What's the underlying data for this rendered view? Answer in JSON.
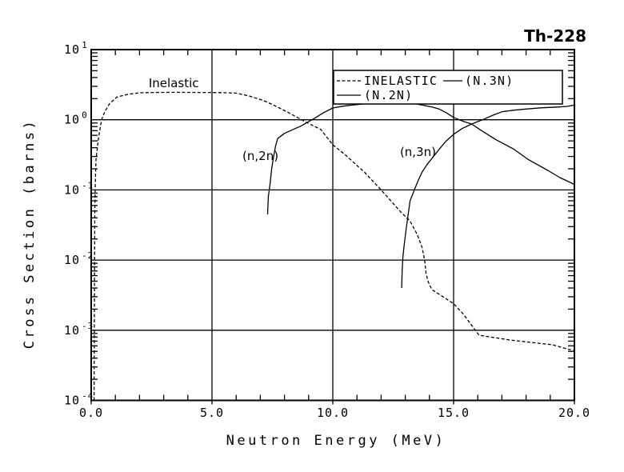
{
  "page": {
    "background": "#ffffff",
    "ink": "#000000"
  },
  "header": {
    "title": "Th-228"
  },
  "chart_data": {
    "type": "line",
    "title": "Th-228",
    "xlabel": "Neutron Energy (MeV)",
    "ylabel": "Cross Section (barns)",
    "xscale": "linear",
    "yscale": "log",
    "xlim": [
      0,
      20
    ],
    "ylim": [
      0.0001,
      10
    ],
    "x_major_ticks": [
      0,
      5,
      10,
      15,
      20
    ],
    "x_tick_labels": [
      "0.0",
      "5.0",
      "10.0",
      "15.0",
      "20.0"
    ],
    "x_minor_tick_step": 1,
    "y_tick_exponents": [
      1,
      0,
      -1,
      -2,
      -3,
      -4
    ],
    "grid": {
      "vertical_at_x": [
        5,
        10,
        15
      ],
      "horizontal_at_exponents": [
        0,
        -1,
        -2,
        -3
      ]
    },
    "legend": {
      "position": "top-right-inside",
      "entries": [
        {
          "label": "INELASTIC",
          "line": "dashed"
        },
        {
          "label": "(N.3N)",
          "line": "solid"
        },
        {
          "label": "(N.2N)",
          "line": "solid"
        }
      ]
    },
    "annotations": [
      {
        "text": "Inelastic",
        "x": 2.38,
        "y": 2.9
      },
      {
        "text": "(n,2n)",
        "x": 6.26,
        "y": 0.267
      },
      {
        "text": "(n,3n)",
        "x": 12.78,
        "y": 0.305
      }
    ],
    "series": [
      {
        "name": "INELASTIC",
        "style": "dashed",
        "points": [
          [
            0.12,
            0.0001
          ],
          [
            0.13,
            0.001
          ],
          [
            0.14,
            0.01
          ],
          [
            0.15,
            0.05
          ],
          [
            0.17,
            0.12
          ],
          [
            0.2,
            0.27
          ],
          [
            0.3,
            0.55
          ],
          [
            0.43,
            1.0
          ],
          [
            0.56,
            1.3
          ],
          [
            0.76,
            1.7
          ],
          [
            1.06,
            2.1
          ],
          [
            1.5,
            2.3
          ],
          [
            2.0,
            2.42
          ],
          [
            2.6,
            2.45
          ],
          [
            3.5,
            2.46
          ],
          [
            4.5,
            2.45
          ],
          [
            5.3,
            2.44
          ],
          [
            6.0,
            2.4
          ],
          [
            6.5,
            2.2
          ],
          [
            7.1,
            1.9
          ],
          [
            7.5,
            1.65
          ],
          [
            8.1,
            1.3
          ],
          [
            8.6,
            1.05
          ],
          [
            8.9,
            0.92
          ],
          [
            9.5,
            0.73
          ],
          [
            10.0,
            0.44
          ],
          [
            10.5,
            0.32
          ],
          [
            11.3,
            0.18
          ],
          [
            12.0,
            0.1
          ],
          [
            12.8,
            0.049
          ],
          [
            13.2,
            0.036
          ],
          [
            13.5,
            0.023
          ],
          [
            13.7,
            0.015
          ],
          [
            13.8,
            0.01
          ],
          [
            13.86,
            0.0064
          ],
          [
            13.95,
            0.0049
          ],
          [
            14.1,
            0.0038
          ],
          [
            14.5,
            0.0031
          ],
          [
            15.0,
            0.0024
          ],
          [
            15.4,
            0.0017
          ],
          [
            15.9,
            0.001
          ],
          [
            16.05,
            0.00085
          ],
          [
            17.4,
            0.00072
          ],
          [
            19.1,
            0.00062
          ],
          [
            19.8,
            0.00053
          ],
          [
            20.0,
            0.00052
          ]
        ]
      },
      {
        "name": "(N.2N)",
        "style": "solid",
        "points": [
          [
            7.3,
            0.045
          ],
          [
            7.33,
            0.08
          ],
          [
            7.4,
            0.12
          ],
          [
            7.47,
            0.2
          ],
          [
            7.55,
            0.3
          ],
          [
            7.63,
            0.42
          ],
          [
            7.72,
            0.54
          ],
          [
            8.0,
            0.64
          ],
          [
            8.37,
            0.73
          ],
          [
            8.7,
            0.82
          ],
          [
            8.92,
            0.91
          ],
          [
            9.25,
            1.05
          ],
          [
            9.6,
            1.25
          ],
          [
            10.0,
            1.47
          ],
          [
            10.4,
            1.56
          ],
          [
            10.8,
            1.62
          ],
          [
            11.6,
            1.72
          ],
          [
            12.2,
            1.76
          ],
          [
            12.8,
            1.78
          ],
          [
            13.3,
            1.72
          ],
          [
            13.7,
            1.62
          ],
          [
            14.1,
            1.52
          ],
          [
            14.4,
            1.42
          ],
          [
            14.7,
            1.26
          ],
          [
            15.0,
            1.08
          ],
          [
            15.4,
            0.95
          ],
          [
            15.75,
            0.87
          ],
          [
            16.1,
            0.72
          ],
          [
            16.75,
            0.52
          ],
          [
            17.5,
            0.38
          ],
          [
            18.1,
            0.27
          ],
          [
            18.9,
            0.19
          ],
          [
            19.4,
            0.15
          ],
          [
            20.0,
            0.12
          ]
        ]
      },
      {
        "name": "(N.3N)",
        "style": "solid",
        "points": [
          [
            12.85,
            0.004
          ],
          [
            12.87,
            0.007
          ],
          [
            12.9,
            0.011
          ],
          [
            12.95,
            0.016
          ],
          [
            13.0,
            0.022
          ],
          [
            13.05,
            0.03
          ],
          [
            13.1,
            0.04
          ],
          [
            13.2,
            0.07
          ],
          [
            13.4,
            0.105
          ],
          [
            13.55,
            0.14
          ],
          [
            13.7,
            0.18
          ],
          [
            13.9,
            0.23
          ],
          [
            14.1,
            0.28
          ],
          [
            14.4,
            0.38
          ],
          [
            14.7,
            0.5
          ],
          [
            15.0,
            0.62
          ],
          [
            15.35,
            0.75
          ],
          [
            15.75,
            0.87
          ],
          [
            16.2,
            1.0
          ],
          [
            16.6,
            1.15
          ],
          [
            17.0,
            1.3
          ],
          [
            17.5,
            1.37
          ],
          [
            18.0,
            1.42
          ],
          [
            18.6,
            1.48
          ],
          [
            19.3,
            1.52
          ],
          [
            19.7,
            1.55
          ],
          [
            20.0,
            1.62
          ]
        ]
      }
    ]
  }
}
